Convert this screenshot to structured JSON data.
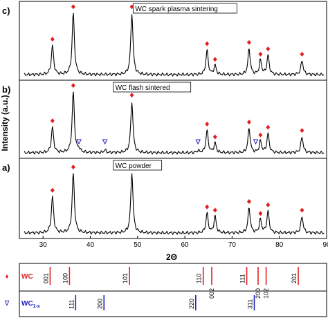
{
  "chart_data": {
    "type": "line",
    "xlabel": "2Θ",
    "ylabel": "Intensity (a.u.)",
    "xlim": [
      25,
      90
    ],
    "x_ticks": [
      30,
      40,
      50,
      60,
      70,
      80,
      90
    ],
    "panels": [
      {
        "letter": "c)",
        "title": "WC spark plasma sintering",
        "peaks": [
          {
            "x": 32.0,
            "h": 0.45
          },
          {
            "x": 36.4,
            "h": 0.95
          },
          {
            "x": 48.8,
            "h": 0.95
          },
          {
            "x": 64.7,
            "h": 0.38
          },
          {
            "x": 66.4,
            "h": 0.14
          },
          {
            "x": 73.6,
            "h": 0.4
          },
          {
            "x": 76.0,
            "h": 0.22
          },
          {
            "x": 77.6,
            "h": 0.3
          },
          {
            "x": 84.8,
            "h": 0.22
          }
        ],
        "wc_markers": [
          32.0,
          36.4,
          48.8,
          64.7,
          66.4,
          73.6,
          76.0,
          77.6,
          84.8
        ],
        "wc1x_markers": []
      },
      {
        "letter": "b)",
        "title": "WC flash sintered",
        "peaks": [
          {
            "x": 32.0,
            "h": 0.4
          },
          {
            "x": 36.4,
            "h": 0.95
          },
          {
            "x": 37.6,
            "h": 0.05
          },
          {
            "x": 43.1,
            "h": 0.04
          },
          {
            "x": 48.8,
            "h": 0.8
          },
          {
            "x": 62.8,
            "h": 0.03
          },
          {
            "x": 64.7,
            "h": 0.35
          },
          {
            "x": 66.4,
            "h": 0.15
          },
          {
            "x": 73.6,
            "h": 0.38
          },
          {
            "x": 76.0,
            "h": 0.18
          },
          {
            "x": 77.6,
            "h": 0.3
          },
          {
            "x": 84.8,
            "h": 0.25
          }
        ],
        "wc_markers": [
          32.0,
          36.4,
          48.8,
          64.7,
          66.4,
          73.6,
          76.0,
          77.6,
          84.8
        ],
        "wc1x_markers": [
          37.6,
          43.1,
          62.8,
          75.0
        ]
      },
      {
        "letter": "a)",
        "title": "WC powder",
        "peaks": [
          {
            "x": 32.0,
            "h": 0.55
          },
          {
            "x": 36.4,
            "h": 0.9
          },
          {
            "x": 48.8,
            "h": 0.92
          },
          {
            "x": 64.7,
            "h": 0.3
          },
          {
            "x": 66.4,
            "h": 0.25
          },
          {
            "x": 73.6,
            "h": 0.38
          },
          {
            "x": 76.0,
            "h": 0.2
          },
          {
            "x": 77.6,
            "h": 0.33
          },
          {
            "x": 84.8,
            "h": 0.25
          }
        ],
        "wc_markers": [
          32.0,
          36.4,
          48.8,
          64.7,
          66.4,
          73.6,
          76.0,
          77.6,
          84.8
        ],
        "wc1x_markers": []
      }
    ],
    "reference": {
      "series": [
        {
          "name": "WC",
          "symbol": "♦",
          "color": "#e02020",
          "lines": [
            {
              "x": 31.5,
              "hkl": "001",
              "label_side": "left"
            },
            {
              "x": 35.6,
              "hkl": "100",
              "label_side": "left"
            },
            {
              "x": 48.3,
              "hkl": "101",
              "label_side": "left"
            },
            {
              "x": 63.9,
              "hkl": "110",
              "label_side": "left"
            },
            {
              "x": 65.7,
              "hkl": "002",
              "label_side": "below"
            },
            {
              "x": 73.1,
              "hkl": "111",
              "label_side": "left"
            },
            {
              "x": 75.5,
              "hkl": "200",
              "label_side": "below"
            },
            {
              "x": 77.2,
              "hkl": "102",
              "label_side": "below"
            },
            {
              "x": 84.0,
              "hkl": "201",
              "label_side": "left"
            }
          ]
        },
        {
          "name": "WC1-x",
          "name_main": "WC",
          "name_sub": "1-x",
          "symbol": "∇",
          "color": "#2020c0",
          "lines": [
            {
              "x": 36.9,
              "hkl": "111",
              "label_side": "left"
            },
            {
              "x": 42.9,
              "hkl": "200",
              "label_side": "left"
            },
            {
              "x": 62.3,
              "hkl": "220",
              "label_side": "left"
            },
            {
              "x": 74.7,
              "hkl": "311",
              "label_side": "left"
            }
          ]
        }
      ]
    }
  },
  "colors": {
    "wc_marker": "#e02020",
    "wc1x_marker": "#2020c0",
    "trace": "#000000"
  }
}
